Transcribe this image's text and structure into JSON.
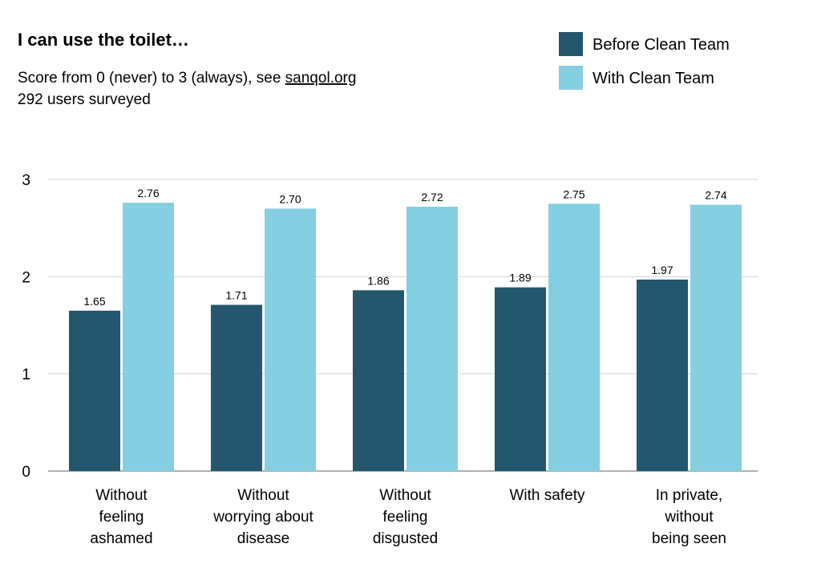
{
  "chart_data": {
    "type": "bar",
    "title": "I can use the toilet…",
    "subtitle_lines": [
      {
        "text": "Score from 0 (never) to 3 (always), see ",
        "link": "sanqol.org"
      },
      {
        "text": "292 users surveyed",
        "link": ""
      }
    ],
    "categories": [
      [
        "Without",
        "feeling",
        "ashamed"
      ],
      [
        "Without",
        "worrying about",
        "disease"
      ],
      [
        "Without",
        "feeling",
        "disgusted"
      ],
      [
        "With safety"
      ],
      [
        "In private,",
        "without",
        "being seen"
      ]
    ],
    "series": [
      {
        "name": "Before Clean Team",
        "color": "#24566d",
        "values": [
          1.65,
          1.71,
          1.86,
          1.89,
          1.97
        ],
        "labels": [
          "1.65",
          "1.71",
          "1.86",
          "1.89",
          "1.97"
        ]
      },
      {
        "name": "With Clean Team",
        "color": "#84cfe2",
        "values": [
          2.76,
          2.7,
          2.72,
          2.75,
          2.74
        ],
        "labels": [
          "2.76",
          "2.70",
          "2.72",
          "2.75",
          "2.74"
        ]
      }
    ],
    "ylim": [
      0,
      3
    ],
    "yticks": [
      "0",
      "1",
      "2",
      "3"
    ],
    "grid": true,
    "legend_position": "top-right"
  }
}
